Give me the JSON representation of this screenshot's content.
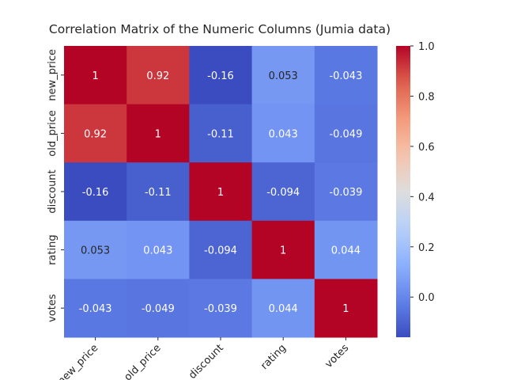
{
  "chart_data": {
    "type": "heatmap",
    "title": "Correlation Matrix of the Numeric Columns (Jumia data)",
    "xlabel": "",
    "ylabel": "",
    "row_labels": [
      "new_price",
      "old_price",
      "discount",
      "rating",
      "votes"
    ],
    "col_labels": [
      "new_price",
      "old_price",
      "discount",
      "rating",
      "votes"
    ],
    "values": [
      [
        1,
        0.92,
        -0.16,
        0.053,
        -0.043
      ],
      [
        0.92,
        1,
        -0.11,
        0.043,
        -0.049
      ],
      [
        -0.16,
        -0.11,
        1,
        -0.094,
        -0.039
      ],
      [
        0.053,
        0.043,
        -0.094,
        1,
        0.044
      ],
      [
        -0.043,
        -0.049,
        -0.039,
        0.044,
        1
      ]
    ],
    "cell_labels": [
      [
        "1",
        "0.92",
        "-0.16",
        "0.053",
        "-0.043"
      ],
      [
        "0.92",
        "1",
        "-0.11",
        "0.043",
        "-0.049"
      ],
      [
        "-0.16",
        "-0.11",
        "1",
        "-0.094",
        "-0.039"
      ],
      [
        "0.053",
        "0.043",
        "-0.094",
        "1",
        "0.044"
      ],
      [
        "-0.043",
        "-0.049",
        "-0.039",
        "0.044",
        "1"
      ]
    ],
    "colormap": "coolwarm",
    "vmin": -0.16,
    "vmax": 1.0,
    "colorbar": {
      "ticks": [
        0.0,
        0.2,
        0.4,
        0.6,
        0.8,
        1.0
      ],
      "tick_labels": [
        "0.0",
        "0.2",
        "0.4",
        "0.6",
        "0.8",
        "1.0"
      ]
    },
    "x_tick_rotation_deg": 45,
    "grid": false
  }
}
